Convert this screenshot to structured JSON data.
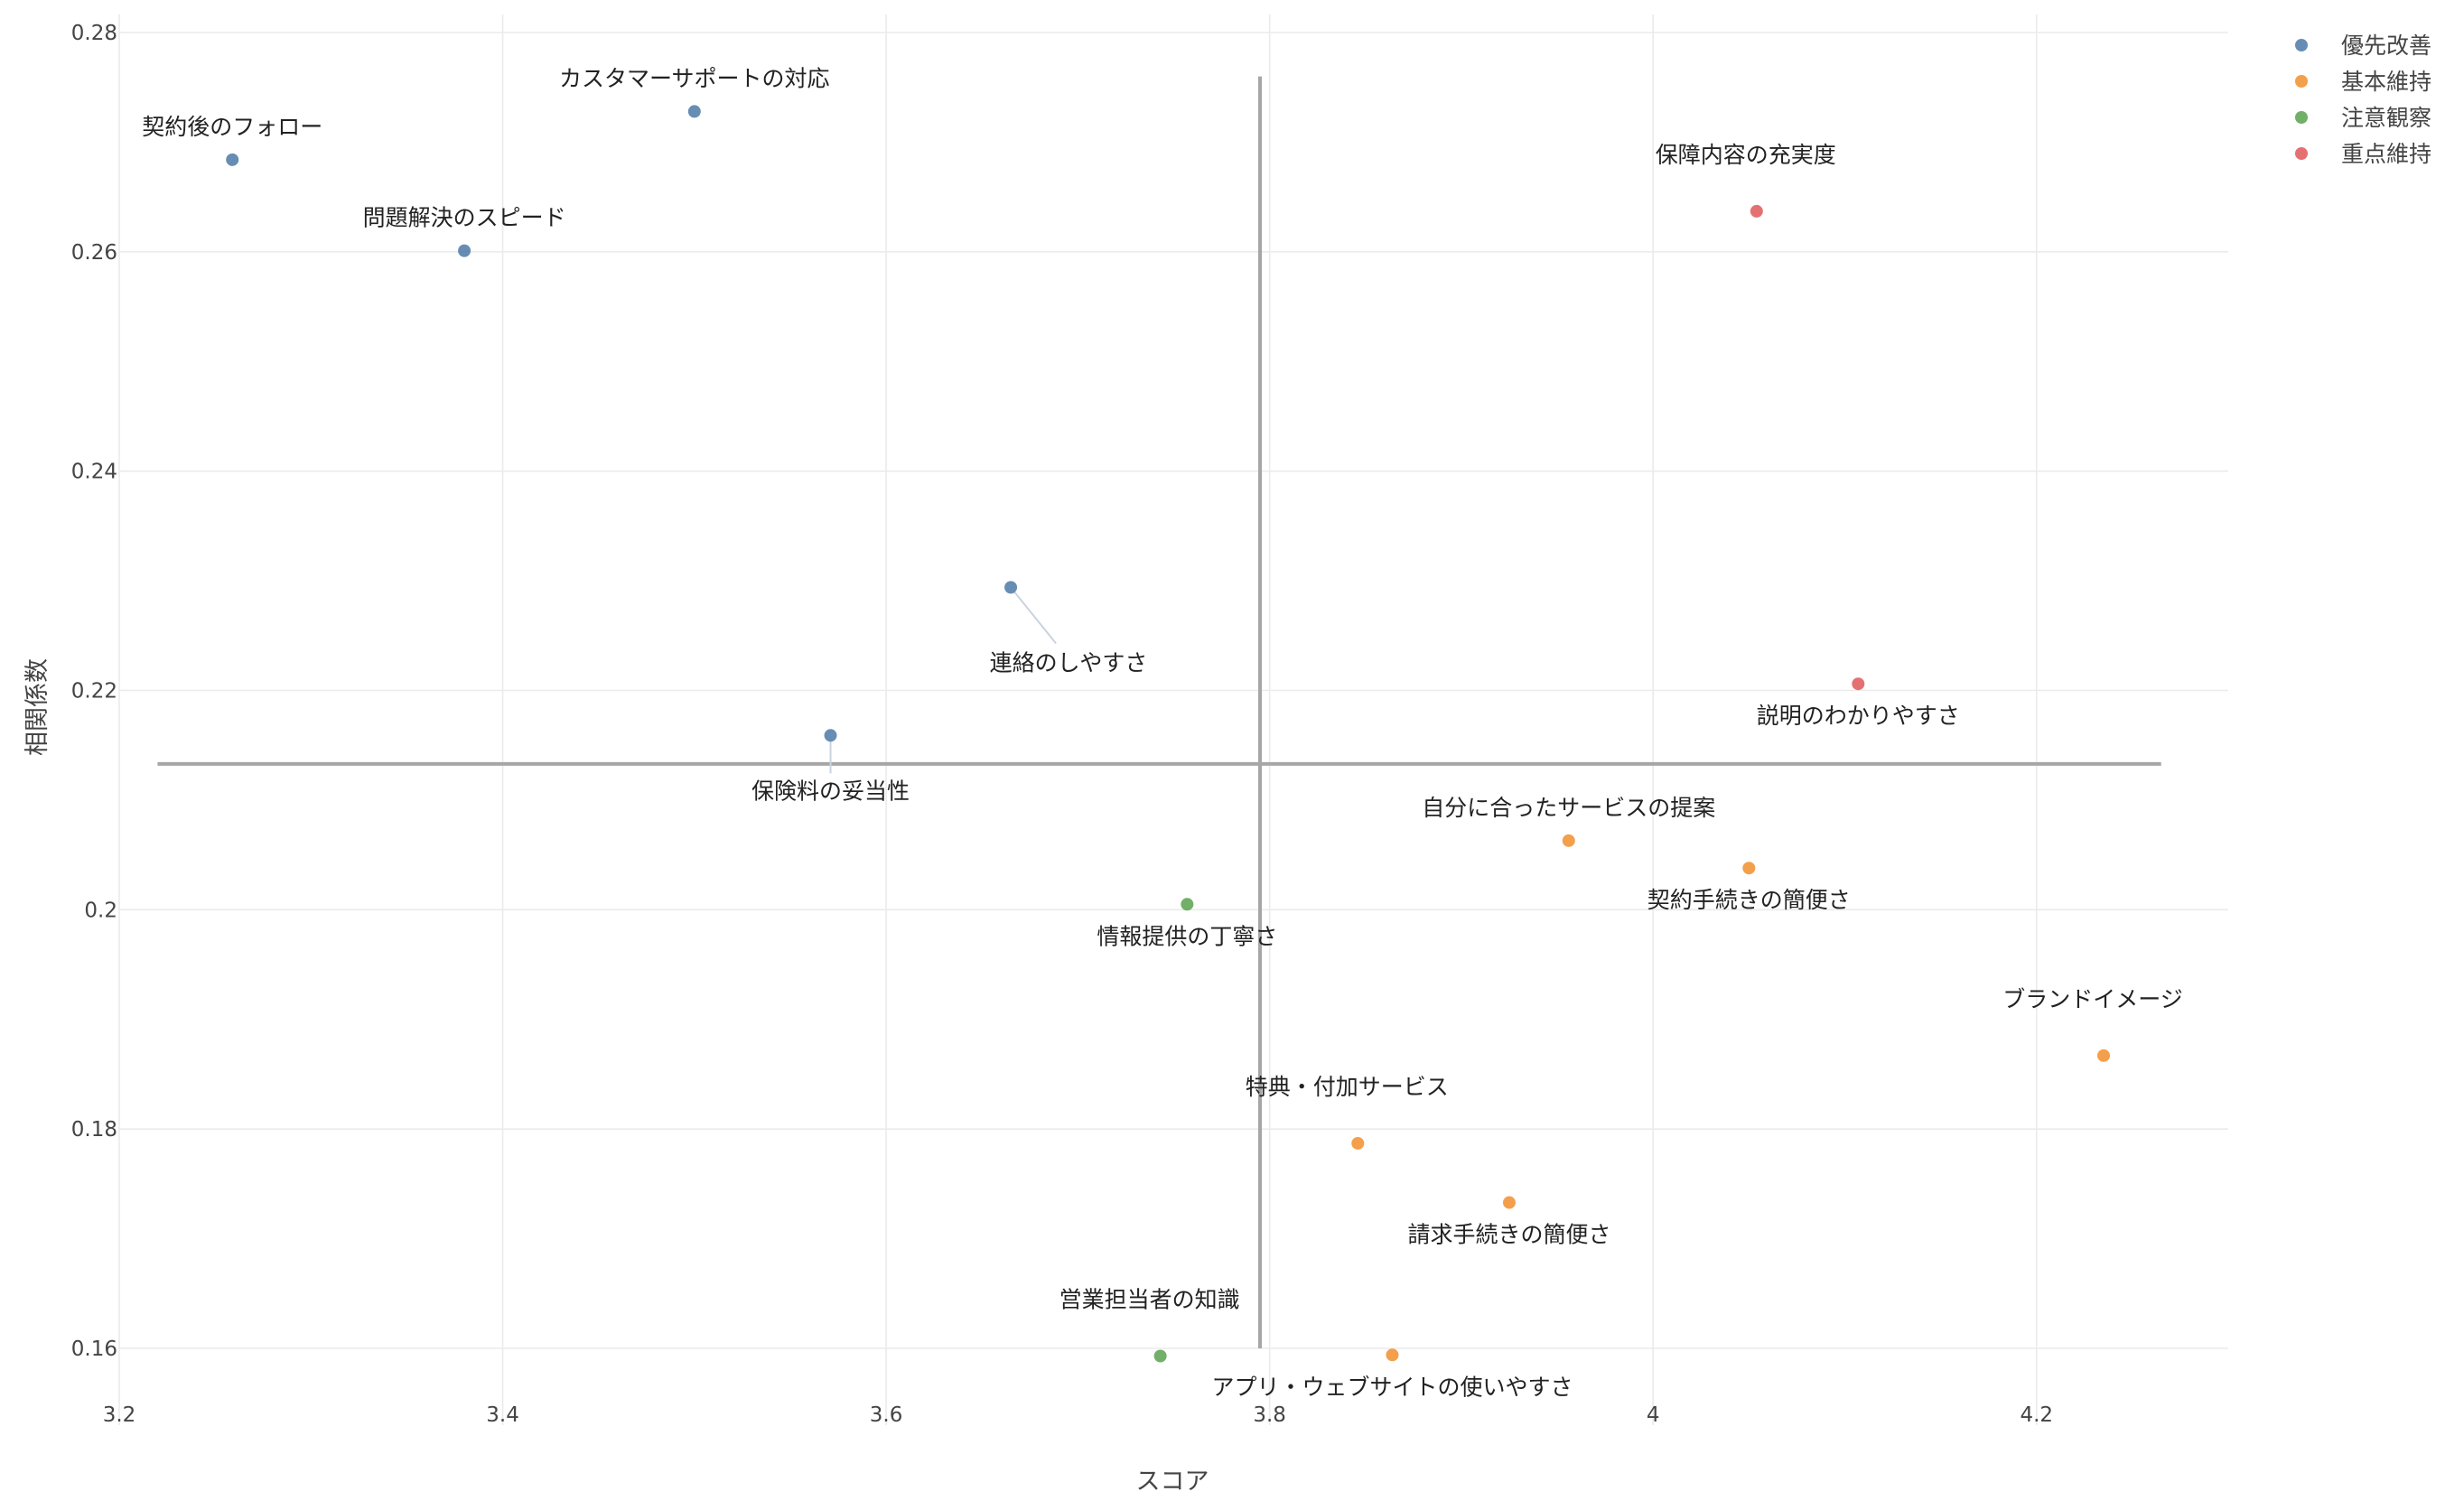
{
  "chart_data": {
    "type": "scatter",
    "title": "",
    "xlabel": "スコア",
    "ylabel": "相関係数",
    "xlim": [
      3.2,
      4.3
    ],
    "ylim": [
      0.153,
      0.28
    ],
    "x_ticks": [
      3.2,
      3.4,
      3.6,
      3.8,
      4.0,
      4.2
    ],
    "x_tick_labels": [
      "3.2",
      "3.4",
      "3.6",
      "3.8",
      "4",
      "4.2"
    ],
    "y_ticks": [
      0.16,
      0.18,
      0.2,
      0.22,
      0.24,
      0.26,
      0.28
    ],
    "y_tick_labels": [
      "0.16",
      "0.18",
      "0.2",
      "0.22",
      "0.24",
      "0.26",
      "0.28"
    ],
    "grid": true,
    "reference_lines": {
      "x": 3.795,
      "y": 0.2133,
      "x_line_y_range": [
        0.16,
        0.276
      ],
      "y_line_x_range": [
        3.22,
        4.265
      ]
    },
    "legend": {
      "placement": "top-right",
      "entries": [
        {
          "name": "優先改善",
          "color": "#4e79a7"
        },
        {
          "name": "基本維持",
          "color": "#f28e2b"
        },
        {
          "name": "注意観察",
          "color": "#59a14f"
        },
        {
          "name": "重点維持",
          "color": "#e15759"
        }
      ]
    },
    "points": [
      {
        "label": "契約後のフォロー",
        "x": 3.259,
        "y": 0.2684,
        "group": "優先改善",
        "label_pos": "above"
      },
      {
        "label": "カスタマーサポートの対応",
        "x": 3.5,
        "y": 0.2728,
        "group": "優先改善",
        "label_pos": "above"
      },
      {
        "label": "問題解決のスピード",
        "x": 3.38,
        "y": 0.2601,
        "group": "優先改善",
        "label_pos": "above"
      },
      {
        "label": "連絡のしやすさ",
        "x": 3.665,
        "y": 0.2294,
        "group": "優先改善",
        "label_pos": "below-right-leader"
      },
      {
        "label": "保険料の妥当性",
        "x": 3.571,
        "y": 0.2159,
        "group": "優先改善",
        "label_pos": "below-leader"
      },
      {
        "label": "保障内容の充実度",
        "x": 4.054,
        "y": 0.2637,
        "group": "重点維持",
        "label_pos": "above-left"
      },
      {
        "label": "説明のわかりやすさ",
        "x": 4.107,
        "y": 0.2206,
        "group": "重点維持",
        "label_pos": "below"
      },
      {
        "label": "自分に合ったサービスの提案",
        "x": 3.956,
        "y": 0.2063,
        "group": "基本維持",
        "label_pos": "above"
      },
      {
        "label": "契約手続きの簡便さ",
        "x": 4.05,
        "y": 0.2038,
        "group": "基本維持",
        "label_pos": "below"
      },
      {
        "label": "ブランドイメージ",
        "x": 4.235,
        "y": 0.1867,
        "group": "基本維持",
        "label_pos": "above-left"
      },
      {
        "label": "特典・付加サービス",
        "x": 3.846,
        "y": 0.1787,
        "group": "基本維持",
        "label_pos": "above-left"
      },
      {
        "label": "請求手続きの簡便さ",
        "x": 3.925,
        "y": 0.1733,
        "group": "基本維持",
        "label_pos": "below"
      },
      {
        "label": "アプリ・ウェブサイトの使いやすさ",
        "x": 3.864,
        "y": 0.1594,
        "group": "基本維持",
        "label_pos": "below"
      },
      {
        "label": "情報提供の丁寧さ",
        "x": 3.757,
        "y": 0.2005,
        "group": "注意観察",
        "label_pos": "below"
      },
      {
        "label": "営業担当者の知識",
        "x": 3.743,
        "y": 0.1593,
        "group": "注意観察",
        "label_pos": "above-left"
      }
    ]
  }
}
